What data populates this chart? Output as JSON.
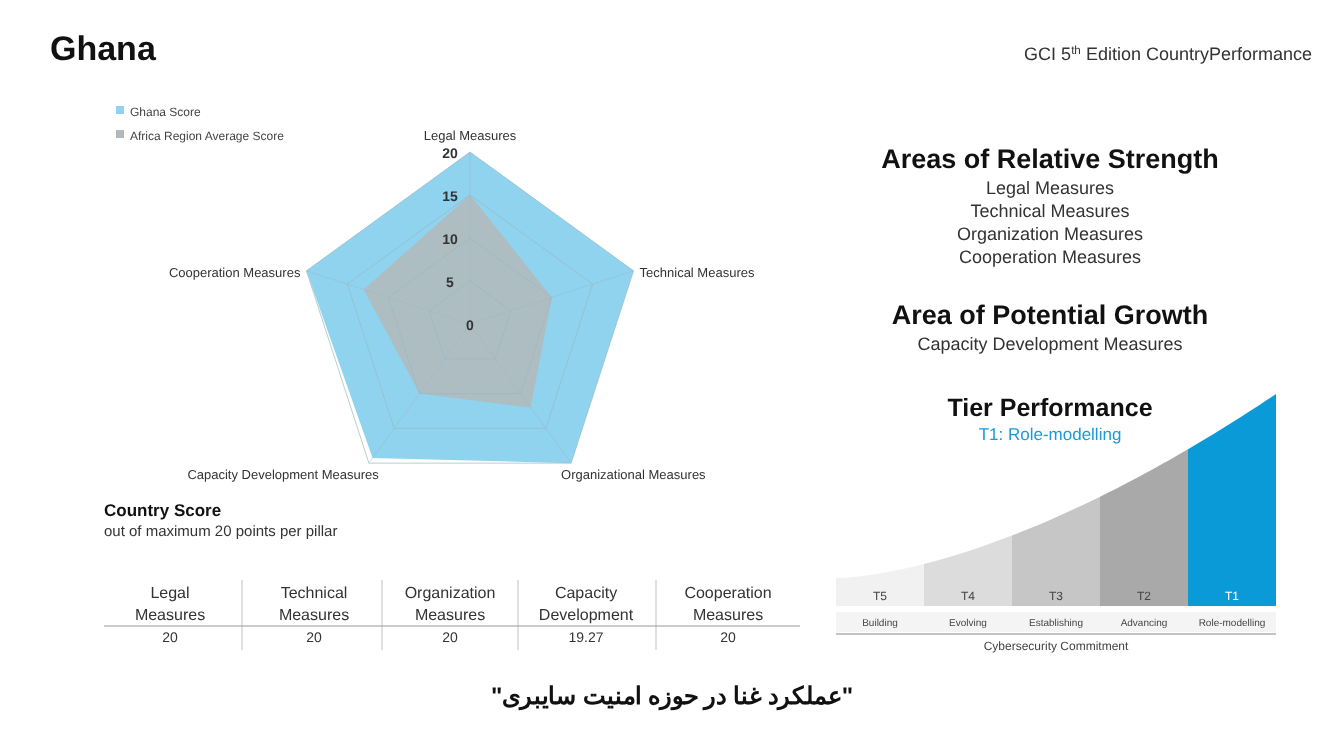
{
  "chart_data": [
    {
      "type": "radar",
      "title": "Ghana",
      "categories": [
        "Legal Measures",
        "Technical Measures",
        "Organizational Measures",
        "Capacity Development Measures",
        "Cooperation Measures"
      ],
      "series": [
        {
          "name": "Ghana Score",
          "color": "#8fd3ee",
          "values": [
            20,
            20,
            20,
            19.27,
            20
          ]
        },
        {
          "name": "Africa Region Average Score",
          "color": "#b4b8ba",
          "values": [
            15,
            10,
            12,
            10,
            13
          ]
        }
      ],
      "ylim": [
        0,
        20
      ],
      "yticks": [
        0,
        5,
        10,
        15,
        20
      ],
      "grid": true,
      "legend": "top left"
    },
    {
      "type": "other",
      "title": "Areas of Relative Strength",
      "subtitle": "GCI 5$^{th}$ Edition CountryPerformance",
      "annotations": [
        "Legal Measures",
        "Technical Measures",
        "Organization Measures",
        "Cooperation Measures"
      ]
    },
    {
      "type": "other",
      "title": "Area of Potential Growth",
      "annotations": [
        "Capacity Development Measures"
      ]
    },
    {
      "type": "other",
      "title": "Tier Performance",
      "subtitle": "T1: Role-modelling",
      "categories": [
        "T5",
        "T4",
        "T3",
        "T2",
        "T1"
      ],
      "annotations": [
        "Building",
        "Evolving",
        "Establishing",
        "Advancing",
        "Role-modelling"
      ],
      "xlabel": "Cybersecurity Commitment",
      "colors": [
        "#f1f1f1",
        "#dcdcdc",
        "#c6c6c6",
        "#a9a9a9",
        "#0a9ad8"
      ]
    },
    {
      "type": "other",
      "title": "Country Score",
      "subtitle": "out of maximum 20 points per pillar",
      "categories": [
        "Legal Measures",
        "Technical Measures",
        "Organization Measures",
        "Capacity Development",
        "Cooperation Measures"
      ],
      "values": [
        20,
        20,
        20,
        19.27,
        20
      ],
      "data_labels": true,
      "annotations": [
        "\"عملکرد غنا در حوزه امنیت سایبری\""
      ]
    }
  ]
}
